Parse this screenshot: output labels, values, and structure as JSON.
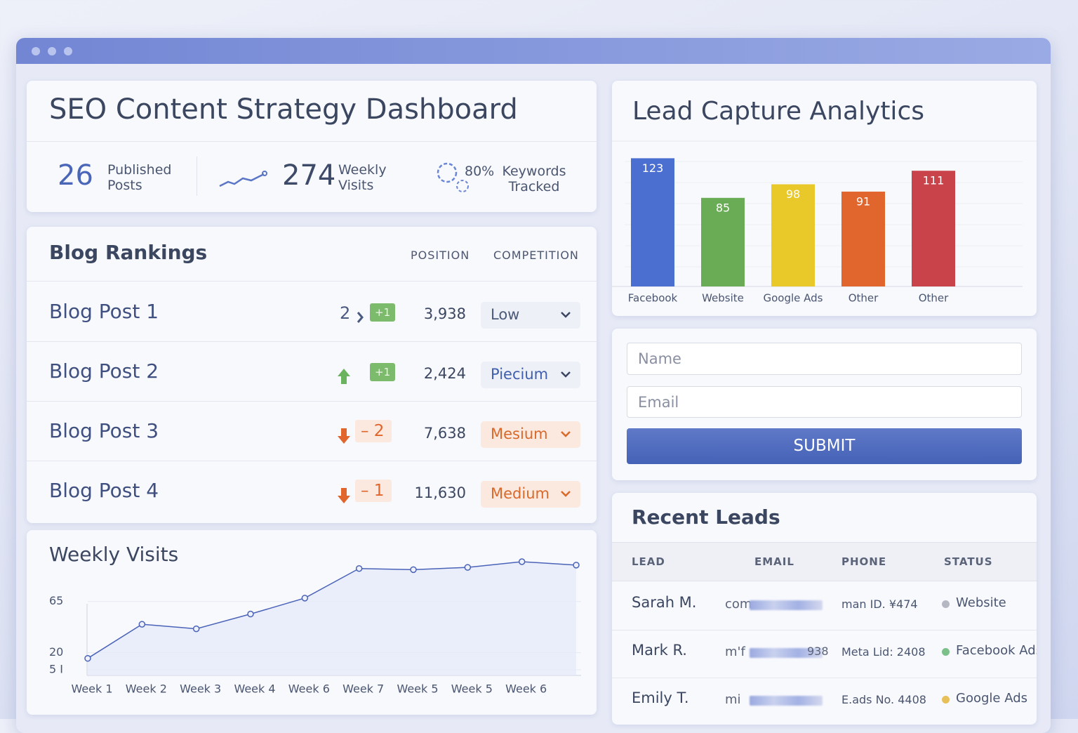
{
  "seo": {
    "title": "SEO Content Strategy Dashboard",
    "stats": [
      {
        "value": "26",
        "label": "Published Posts"
      },
      {
        "value": "274",
        "label": "Weekly Visits"
      },
      {
        "value": "80%",
        "label": "Keywords Tracked"
      }
    ]
  },
  "rankings": {
    "title": "Blog Rankings",
    "columns": [
      "POSITION",
      "COMPETITION"
    ],
    "rows": [
      {
        "name": "Blog Post 1",
        "position": "2",
        "trend": "flat",
        "change": "+1",
        "metric": "3,938",
        "competition": "Low",
        "color": "#4a5a78"
      },
      {
        "name": "Blog Post 2",
        "position": null,
        "trend": "up",
        "change": "+1",
        "metric": "2,424",
        "competition": "Piecium",
        "color": "#3f5fae"
      },
      {
        "name": "Blog Post 3",
        "position": null,
        "trend": "down",
        "change": "– 2",
        "metric": "7,638",
        "competition": "Mesium",
        "color": "#d9692a"
      },
      {
        "name": "Blog Post 4",
        "position": null,
        "trend": "down",
        "change": "– 1",
        "metric": "11,630",
        "competition": "Medium",
        "color": "#d9692a"
      }
    ]
  },
  "chart_data": [
    {
      "type": "line",
      "title": "Weekly Visits",
      "categories": [
        "Week 1",
        "Week 2",
        "Week 3",
        "Week 4",
        "Week 6",
        "Week 7",
        "Week 5",
        "Week 5",
        "Week 6",
        null
      ],
      "values": [
        15,
        45,
        41,
        54,
        68,
        94,
        93,
        95,
        100,
        97
      ],
      "color": "#4a63b8",
      "ylim": [
        0,
        100
      ],
      "yticks": [
        {
          "value": 5,
          "label": "5 I"
        },
        20,
        65
      ],
      "grid": true
    },
    {
      "type": "bar",
      "title": "Lead Capture Analytics",
      "categories": [
        "Facebook",
        "Website",
        "Google Ads",
        "Other",
        "Other"
      ],
      "values": [
        123,
        85,
        98,
        91,
        111
      ],
      "colors": [
        "#4a6fd1",
        "#6aab55",
        "#e9c82a",
        "#e0662e",
        "#c8434a"
      ],
      "ylim": [
        0,
        130
      ]
    }
  ],
  "form": {
    "name": "Name",
    "email": "Email",
    "submit": "SUBMIT"
  },
  "leads": {
    "title": "Recent Leads",
    "columns": [
      "LEAD",
      "EMAIL",
      "PHONE",
      "STATUS"
    ],
    "rows": [
      {
        "lead": "Sarah M.",
        "email": "com",
        "email_tail": null,
        "phone": "man ID. ¥474",
        "status": "Website",
        "color": "#b5b8c2"
      },
      {
        "lead": "Mark R.",
        "email": "m'f",
        "email_tail": "938",
        "phone": "Meta Lid: 2408",
        "status": "Facebook Ads",
        "color": "#7cc08a"
      },
      {
        "lead": "Emily T.",
        "email": "mi",
        "email_tail": null,
        "phone": "E.ads No. 4408",
        "status": "Google Ads",
        "color": "#e8c05a"
      }
    ]
  }
}
